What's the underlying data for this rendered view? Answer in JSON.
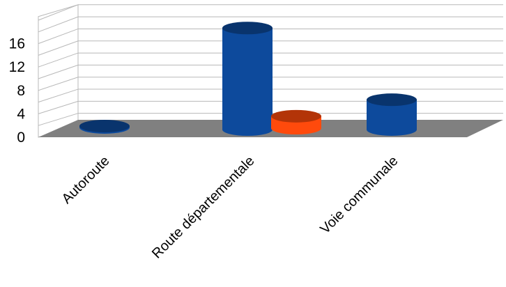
{
  "chart_data": {
    "type": "bar",
    "categories": [
      "Autoroute",
      "Route départementale",
      "Voie communale"
    ],
    "series": [
      {
        "values": [
          0,
          17,
          5
        ],
        "color": "#0d4a9c"
      },
      {
        "values": [
          0,
          2,
          0
        ],
        "color": "#ff4a0c"
      }
    ],
    "yticks": [
      "0",
      "4",
      "8",
      "12",
      "16"
    ],
    "ylim": [
      0,
      20
    ],
    "grid": true,
    "legend": "none",
    "colors": {
      "floor": "#808080",
      "grid": "#b8b8b8"
    }
  }
}
